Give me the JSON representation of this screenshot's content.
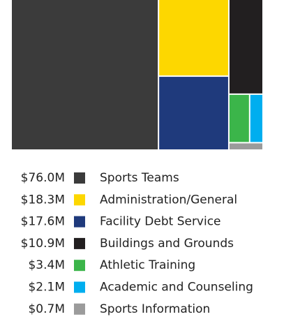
{
  "chart_data": {
    "type": "treemap",
    "categories": [
      "Sports Teams",
      "Administration/General",
      "Facility Debt Service",
      "Buildings and Grounds",
      "Athletic Training",
      "Academic and Counseling",
      "Sports Information"
    ],
    "values": [
      76.0,
      18.3,
      17.6,
      10.9,
      3.4,
      2.1,
      0.7
    ],
    "value_labels": [
      "$76.0M",
      "$18.3M",
      "$17.6M",
      "$10.9M",
      "$3.4M",
      "$2.1M",
      "$0.7M"
    ],
    "colors": [
      "#3b3b3b",
      "#fdd700",
      "#1f3a7c",
      "#221f20",
      "#3bb54a",
      "#00aeef",
      "#9b9b9b"
    ],
    "legend": "bottom"
  }
}
